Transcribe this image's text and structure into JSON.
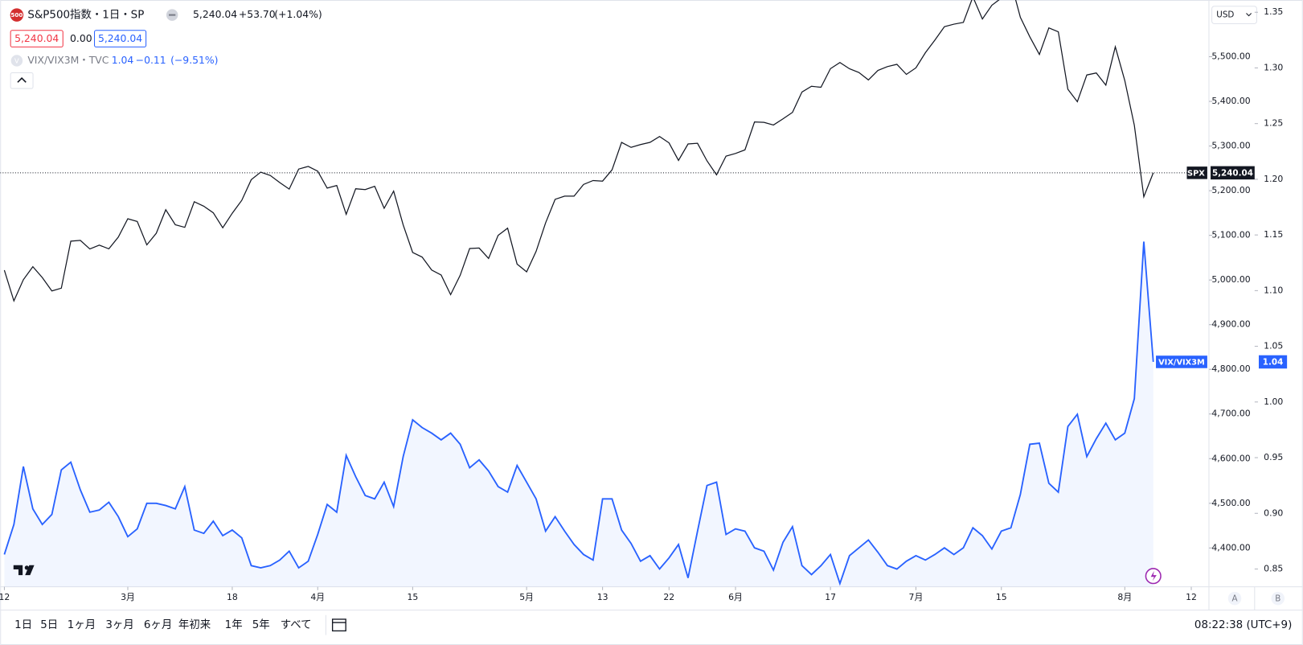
{
  "header": {
    "spx_icon": "500",
    "spx_title": "S&P500指数・1日・SP",
    "spx_price": "5,240.04",
    "spx_change": "+53.70",
    "spx_change_pct": "(+1.04%)",
    "bid": "5,240.04",
    "spread": "0.00",
    "ask": "5,240.04",
    "vix_icon": "V",
    "vix_title": "VIX/VIX3M・TVC",
    "vix_price": "1.04",
    "vix_change": "−0.11",
    "vix_change_pct": "(−9.51%)"
  },
  "toolbar": {
    "ranges": [
      "1日",
      "5日",
      "1ヶ月",
      "3ヶ月",
      "6ヶ月",
      "年初来",
      "1年",
      "5年",
      "すべて"
    ],
    "clock": "08:22:38 (UTC+9)",
    "currency": "USD",
    "axis_buttons": [
      "A",
      "B"
    ]
  },
  "chart_data": {
    "type": "line",
    "grid": false,
    "xlim": [
      -0.44,
      126.86
    ],
    "xticks": [
      {
        "value": 0,
        "label": "12"
      },
      {
        "value": 13,
        "label": "3月"
      },
      {
        "value": 24,
        "label": "18"
      },
      {
        "value": 33,
        "label": "4月"
      },
      {
        "value": 43,
        "label": "15"
      },
      {
        "value": 55,
        "label": "5月"
      },
      {
        "value": 63,
        "label": "13"
      },
      {
        "value": 70,
        "label": "22"
      },
      {
        "value": 77,
        "label": "6月"
      },
      {
        "value": 87,
        "label": "17"
      },
      {
        "value": 96,
        "label": "7月"
      },
      {
        "value": 105,
        "label": "15"
      },
      {
        "value": 118,
        "label": "8月"
      },
      {
        "value": 125,
        "label": "12"
      }
    ],
    "ylim": [
      4313,
      5627
    ],
    "yticks": [
      {
        "value": 4400,
        "label": "4,400.00"
      },
      {
        "value": 4500,
        "label": "4,500.00"
      },
      {
        "value": 4600,
        "label": "4,600.00"
      },
      {
        "value": 4700,
        "label": "4,700.00"
      },
      {
        "value": 4800,
        "label": "4,800.00"
      },
      {
        "value": 4900,
        "label": "4,900.00"
      },
      {
        "value": 5000,
        "label": "5,000.00"
      },
      {
        "value": 5100,
        "label": "5,100.00"
      },
      {
        "value": 5200,
        "label": "5,200.00"
      },
      {
        "value": 5300,
        "label": "5,300.00"
      },
      {
        "value": 5400,
        "label": "5,400.00"
      },
      {
        "value": 5500,
        "label": "5,500.00"
      }
    ],
    "y2lim": [
      0.834,
      1.361
    ],
    "y2ticks": [
      {
        "value": 0.85,
        "label": "0.85"
      },
      {
        "value": 0.9,
        "label": "0.90"
      },
      {
        "value": 0.95,
        "label": "0.95"
      },
      {
        "value": 1.0,
        "label": "1.00"
      },
      {
        "value": 1.05,
        "label": "1.05"
      },
      {
        "value": 1.1,
        "label": "1.10"
      },
      {
        "value": 1.15,
        "label": "1.15"
      },
      {
        "value": 1.2,
        "label": "1.20"
      },
      {
        "value": 1.25,
        "label": "1.25"
      },
      {
        "value": 1.3,
        "label": "1.30"
      },
      {
        "value": 1.35,
        "label": "1.35"
      }
    ],
    "series": [
      {
        "name": "SPX",
        "color": "#131722",
        "last_label": "5,240.04",
        "area": false,
        "values": [
          5021.84,
          4953.17,
          5000.62,
          5029.73,
          5005.57,
          4975.51,
          4981.8,
          5087.03,
          5088.8,
          5069.53,
          5078.18,
          5069.76,
          5096.27,
          5137.08,
          5130.95,
          5078.65,
          5104.76,
          5157.36,
          5123.69,
          5117.94,
          5175.27,
          5165.31,
          5150.48,
          5117.09,
          5149.42,
          5178.51,
          5224.62,
          5241.53,
          5234.18,
          5218.19,
          5203.58,
          5248.49,
          5254.35,
          5243.77,
          5205.81,
          5211.49,
          5147.21,
          5204.34,
          5202.39,
          5209.91,
          5160.64,
          5199.06,
          5123.41,
          5061.82,
          5051.41,
          5022.21,
          5011.12,
          4967.23,
          5010.6,
          5070.55,
          5071.63,
          5048.42,
          5099.96,
          5116.17,
          5035.69,
          5018.39,
          5064.2,
          5127.79,
          5180.74,
          5187.7,
          5187.67,
          5214.08,
          5222.68,
          5221.42,
          5246.68,
          5308.15,
          5297.1,
          5303.27,
          5308.13,
          5321.41,
          5307.01,
          5267.84,
          5304.72,
          5306.04,
          5266.95,
          5235.48,
          5277.51,
          5283.4,
          5291.34,
          5354.03,
          5352.96,
          5346.99,
          5360.79,
          5375.32,
          5421.03,
          5433.74,
          5431.6,
          5473.23,
          5487.03,
          5473.17,
          5464.62,
          5447.87,
          5469.3,
          5477.9,
          5482.87,
          5460.48,
          5475.09,
          5509.01,
          5537.02,
          5567.19,
          5572.85,
          5576.98,
          5633.91,
          5584.54,
          5615.35,
          5631.22,
          5667.2,
          5588.27,
          5544.59,
          5505,
          5564.41,
          5555.74,
          5427.13,
          5399.22,
          5459.1,
          5463.54,
          5436.44,
          5522.3,
          5446.68,
          5346.56,
          5186.33,
          5240.04
        ]
      },
      {
        "name": "VIX/VIX3M",
        "color": "#2962ff",
        "last_label": "1.04",
        "area": true,
        "axis": "y2",
        "values": [
          0.863,
          0.89,
          0.942,
          0.904,
          0.89,
          0.899,
          0.939,
          0.946,
          0.921,
          0.901,
          0.903,
          0.91,
          0.897,
          0.879,
          0.886,
          0.909,
          0.909,
          0.907,
          0.904,
          0.924,
          0.885,
          0.882,
          0.893,
          0.88,
          0.885,
          0.878,
          0.853,
          0.851,
          0.853,
          0.858,
          0.866,
          0.851,
          0.857,
          0.881,
          0.908,
          0.901,
          0.952,
          0.933,
          0.916,
          0.913,
          0.928,
          0.906,
          0.951,
          0.984,
          0.977,
          0.972,
          0.966,
          0.972,
          0.962,
          0.941,
          0.948,
          0.938,
          0.924,
          0.919,
          0.943,
          0.928,
          0.913,
          0.884,
          0.897,
          0.884,
          0.872,
          0.863,
          0.858,
          0.913,
          0.913,
          0.885,
          0.873,
          0.857,
          0.862,
          0.85,
          0.86,
          0.872,
          0.842,
          0.884,
          0.925,
          0.928,
          0.881,
          0.886,
          0.884,
          0.869,
          0.866,
          0.849,
          0.874,
          0.888,
          0.853,
          0.845,
          0.853,
          0.863,
          0.837,
          0.862,
          0.869,
          0.876,
          0.865,
          0.853,
          0.85,
          0.857,
          0.862,
          0.858,
          0.863,
          0.869,
          0.863,
          0.869,
          0.887,
          0.88,
          0.868,
          0.884,
          0.887,
          0.917,
          0.962,
          0.963,
          0.927,
          0.919,
          0.978,
          0.989,
          0.951,
          0.967,
          0.981,
          0.966,
          0.972,
          1.003,
          1.144,
          1.036
        ]
      }
    ]
  }
}
